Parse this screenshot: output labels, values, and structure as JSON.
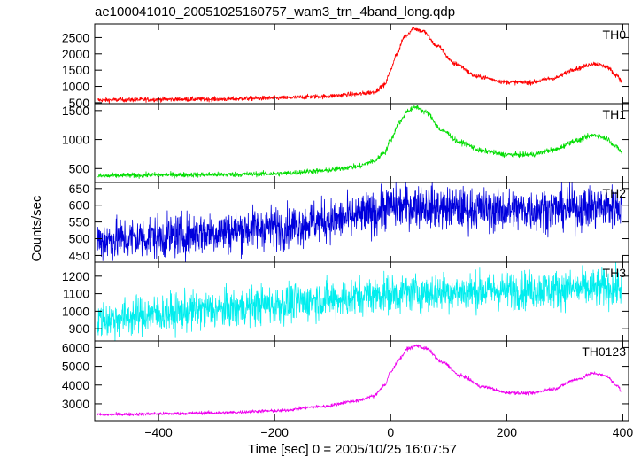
{
  "chart_data": {
    "type": "line",
    "title": "ae100041010_20051025160757_wam3_trn_4band_long.qdp",
    "xlabel": "Time [sec] 0 = 2005/10/25 16:07:57",
    "ylabel": "Counts/sec",
    "xlim": [
      -510,
      410
    ],
    "xticks": [
      -400,
      -200,
      0,
      200,
      400
    ],
    "xtick_labels": [
      "−400",
      "−200",
      "0",
      "200",
      "400"
    ],
    "panels": [
      {
        "name": "TH0",
        "color": "#ff0000",
        "ylim": [
          470,
          2920
        ],
        "yticks": [
          500,
          1000,
          1500,
          2000,
          2500
        ],
        "noise": 35,
        "points": [
          [
            -505,
            580
          ],
          [
            -450,
            590
          ],
          [
            -400,
            600
          ],
          [
            -300,
            610
          ],
          [
            -200,
            640
          ],
          [
            -120,
            690
          ],
          [
            -60,
            760
          ],
          [
            -30,
            820
          ],
          [
            -10,
            1050
          ],
          [
            0,
            1500
          ],
          [
            10,
            2000
          ],
          [
            25,
            2550
          ],
          [
            40,
            2780
          ],
          [
            55,
            2700
          ],
          [
            80,
            2250
          ],
          [
            110,
            1700
          ],
          [
            150,
            1300
          ],
          [
            200,
            1130
          ],
          [
            240,
            1120
          ],
          [
            280,
            1250
          ],
          [
            320,
            1550
          ],
          [
            350,
            1700
          ],
          [
            370,
            1620
          ],
          [
            390,
            1350
          ],
          [
            398,
            1150
          ]
        ]
      },
      {
        "name": "TH1",
        "color": "#00dd00",
        "ylim": [
          260,
          1620
        ],
        "yticks": [
          500,
          1000,
          1500
        ],
        "noise": 22,
        "points": [
          [
            -505,
            370
          ],
          [
            -450,
            380
          ],
          [
            -400,
            390
          ],
          [
            -300,
            395
          ],
          [
            -200,
            410
          ],
          [
            -120,
            460
          ],
          [
            -60,
            530
          ],
          [
            -30,
            620
          ],
          [
            -10,
            780
          ],
          [
            0,
            1000
          ],
          [
            15,
            1300
          ],
          [
            30,
            1500
          ],
          [
            45,
            1560
          ],
          [
            60,
            1470
          ],
          [
            90,
            1150
          ],
          [
            120,
            950
          ],
          [
            160,
            800
          ],
          [
            200,
            740
          ],
          [
            240,
            740
          ],
          [
            280,
            820
          ],
          [
            320,
            980
          ],
          [
            350,
            1080
          ],
          [
            370,
            1030
          ],
          [
            390,
            870
          ],
          [
            398,
            780
          ]
        ]
      },
      {
        "name": "TH2",
        "color": "#0000dd",
        "ylim": [
          430,
          668
        ],
        "yticks": [
          450,
          500,
          550,
          600,
          650
        ],
        "noise": 32,
        "points": [
          [
            -505,
            495
          ],
          [
            -400,
            505
          ],
          [
            -300,
            520
          ],
          [
            -200,
            535
          ],
          [
            -100,
            555
          ],
          [
            -30,
            575
          ],
          [
            0,
            595
          ],
          [
            50,
            600
          ],
          [
            100,
            590
          ],
          [
            200,
            585
          ],
          [
            300,
            590
          ],
          [
            398,
            595
          ]
        ]
      },
      {
        "name": "TH3",
        "color": "#00eeee",
        "ylim": [
          830,
          1280
        ],
        "yticks": [
          900,
          1000,
          1100,
          1200
        ],
        "noise": 55,
        "points": [
          [
            -505,
            950
          ],
          [
            -400,
            985
          ],
          [
            -300,
            1010
          ],
          [
            -200,
            1040
          ],
          [
            -100,
            1070
          ],
          [
            0,
            1100
          ],
          [
            100,
            1110
          ],
          [
            200,
            1120
          ],
          [
            300,
            1125
          ],
          [
            398,
            1135
          ]
        ]
      },
      {
        "name": "TH0123",
        "color": "#ee00ee",
        "ylim": [
          2100,
          6350
        ],
        "yticks": [
          3000,
          4000,
          5000,
          6000
        ],
        "noise": 45,
        "points": [
          [
            -505,
            2420
          ],
          [
            -450,
            2440
          ],
          [
            -400,
            2470
          ],
          [
            -300,
            2520
          ],
          [
            -200,
            2620
          ],
          [
            -120,
            2850
          ],
          [
            -60,
            3150
          ],
          [
            -30,
            3400
          ],
          [
            -10,
            4000
          ],
          [
            0,
            4700
          ],
          [
            15,
            5400
          ],
          [
            30,
            5950
          ],
          [
            45,
            6100
          ],
          [
            60,
            5950
          ],
          [
            90,
            5200
          ],
          [
            120,
            4500
          ],
          [
            160,
            3900
          ],
          [
            200,
            3600
          ],
          [
            240,
            3560
          ],
          [
            280,
            3800
          ],
          [
            320,
            4300
          ],
          [
            350,
            4630
          ],
          [
            370,
            4500
          ],
          [
            390,
            4000
          ],
          [
            398,
            3650
          ]
        ]
      }
    ]
  }
}
